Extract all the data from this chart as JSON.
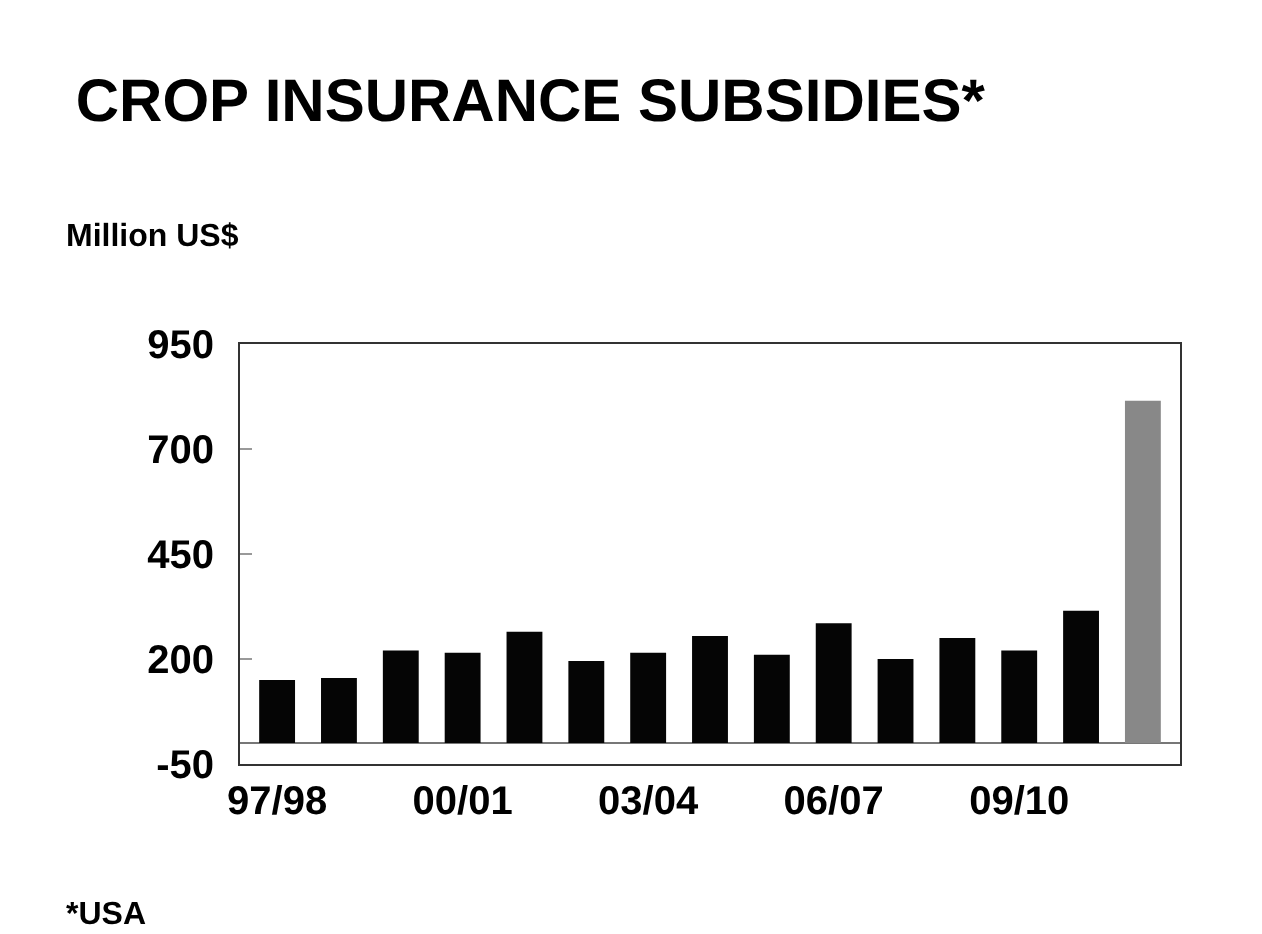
{
  "chart_data": {
    "type": "bar",
    "title": "CROP INSURANCE SUBSIDIES*",
    "ylabel": "Million US$",
    "categories": [
      "97/98",
      null,
      null,
      "00/01",
      null,
      null,
      "03/04",
      null,
      null,
      "06/07",
      null,
      null,
      "09/10",
      null,
      null
    ],
    "values": [
      150,
      155,
      220,
      215,
      265,
      195,
      215,
      255,
      210,
      285,
      200,
      250,
      220,
      315,
      815
    ],
    "colors": [
      "#050505",
      "#050505",
      "#050505",
      "#050505",
      "#050505",
      "#050505",
      "#050505",
      "#050505",
      "#050505",
      "#050505",
      "#050505",
      "#050505",
      "#050505",
      "#050505",
      "#888888"
    ],
    "ylim": [
      -50,
      950
    ],
    "yticks": [
      -50,
      200,
      450,
      700,
      950
    ],
    "grid": false,
    "annotations": [
      "*USA"
    ]
  }
}
